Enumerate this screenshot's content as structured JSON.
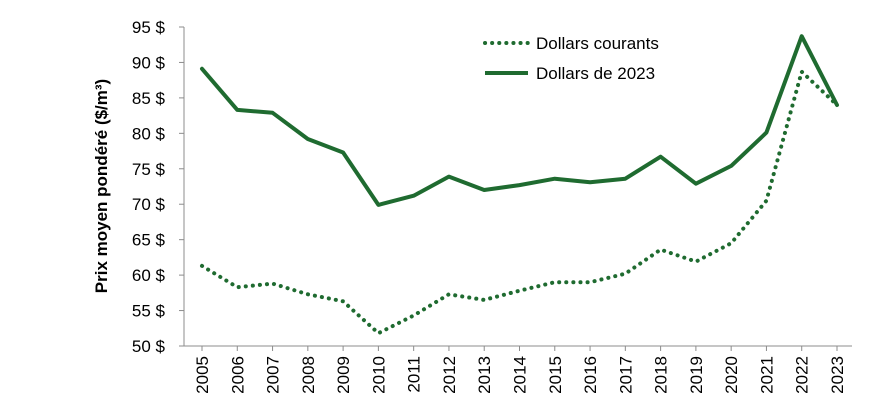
{
  "chart_data": {
    "type": "line",
    "title": "",
    "xlabel": "",
    "ylabel": "Prix moyen pondéré ($/m³)",
    "ylim": [
      50,
      95
    ],
    "y_ticks": [
      "50 $",
      "55 $",
      "60 $",
      "65 $",
      "70 $",
      "75 $",
      "80 $",
      "85 $",
      "90 $",
      "95 $"
    ],
    "grid": false,
    "legend_position": "top-center",
    "categories": [
      "2005",
      "2006",
      "2007",
      "2008",
      "2009",
      "2010",
      "2011",
      "2012",
      "2013",
      "2014",
      "2015",
      "2016",
      "2017",
      "2018",
      "2019",
      "2020",
      "2021",
      "2022",
      "2023"
    ],
    "series": [
      {
        "name": "Dollars courants",
        "style": "dotted",
        "color": "#1f6b30",
        "values": [
          61.3,
          58.3,
          58.8,
          57.3,
          56.3,
          51.8,
          54.3,
          57.3,
          56.5,
          57.8,
          59.0,
          59.0,
          60.2,
          63.6,
          61.9,
          64.5,
          70.5,
          88.7,
          84.0
        ]
      },
      {
        "name": "Dollars de 2023",
        "style": "solid",
        "color": "#1f6b30",
        "values": [
          89.1,
          83.3,
          82.9,
          79.2,
          77.3,
          69.9,
          71.2,
          73.9,
          72.0,
          72.7,
          73.6,
          73.1,
          73.6,
          76.7,
          72.9,
          75.4,
          80.1,
          93.7,
          84.0
        ]
      }
    ]
  }
}
